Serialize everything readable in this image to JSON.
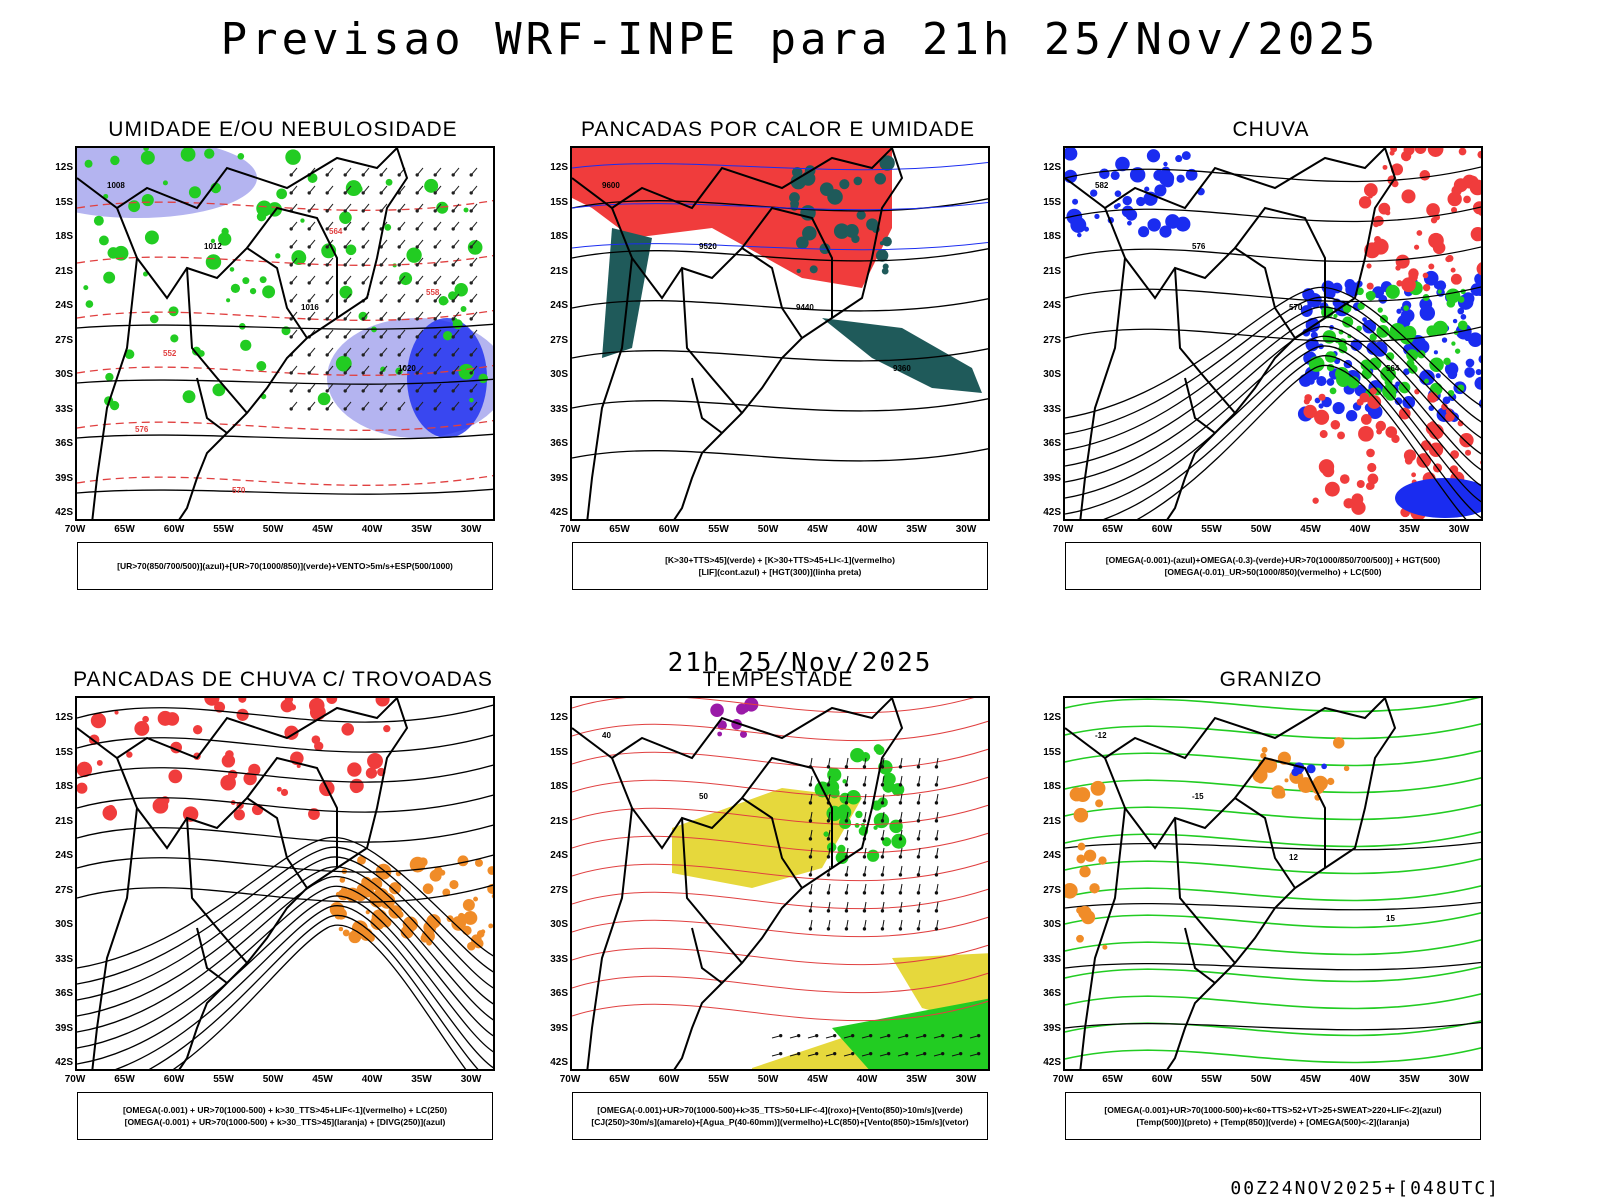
{
  "main_title": "Previsao WRF-INPE  para 21h 25/Nov/2025",
  "mid_title": "21h 25/Nov/2025",
  "footer": "00Z24NOV2025+[048UTC]",
  "lat_labels": [
    "12S",
    "15S",
    "18S",
    "21S",
    "24S",
    "27S",
    "30S",
    "33S",
    "36S",
    "39S",
    "42S"
  ],
  "lon_labels": [
    "70W",
    "65W",
    "60W",
    "55W",
    "50W",
    "45W",
    "40W",
    "35W",
    "30W"
  ],
  "colors": {
    "red": "#f03c3c",
    "green": "#22cc22",
    "blue": "#1a2cf0",
    "lavender": "#b4b4f0",
    "teal": "#1f5a5a",
    "orange": "#f08c28",
    "yellow": "#e6d83c",
    "purple": "#9a1aa8"
  },
  "panels": [
    {
      "title": "UMIDADE E/OU NEBULOSIDADE",
      "legend": [
        "[UR>70(850/700/500)](azul)+[UR>70(1000/850)](verde)+VENTO>5m/s+ESP(500/1000)"
      ],
      "contour_labels": [
        "1008",
        "1012",
        "1016",
        "1020",
        "576",
        "570",
        "564",
        "558",
        "552"
      ]
    },
    {
      "title": "PANCADAS POR CALOR E UMIDADE",
      "legend": [
        "[K>30+TTS>45](verde) + [K>30+TTS>45+LI<-1](vermelho)",
        "[LIF](cont.azul) + [HGT(300)](linha preta)"
      ],
      "contour_labels": [
        "9600",
        "9520",
        "9440",
        "9360"
      ]
    },
    {
      "title": "CHUVA",
      "legend": [
        "[OMEGA(-0.001)-(azul)+OMEGA(-0.3)-(verde)+UR>70(1000/850/700/500)] + HGT(500)",
        "[OMEGA(-0.01)_UR>50(1000/850)(vermelho) + LC(500)"
      ],
      "contour_labels": [
        "582",
        "576",
        "570",
        "564"
      ]
    },
    {
      "title": "PANCADAS DE CHUVA C/ TROVOADAS",
      "legend": [
        "[OMEGA(-0.001) + UR>70(1000-500) + k>30_TTS>45+LIF<-1](vermelho) + LC(250)",
        "[OMEGA(-0.001) + UR>70(1000-500) + k>30_TTS>45](laranja) + [DIVG(250)](azul)"
      ],
      "contour_labels": []
    },
    {
      "title": "TEMPESTADE",
      "legend": [
        "[OMEGA(-0.001)+UR>70(1000-500)+k>35_TTS>50+LIF<-4](roxo)+[Vento(850)>10m/s](verde)",
        "[CJ(250)>30m/s](amarelo)+[Agua_P(40-60mm)](vermelho)+LC(850)+[Vento(850)>15m/s](vetor)"
      ],
      "contour_labels": [
        "40",
        "50"
      ]
    },
    {
      "title": "GRANIZO",
      "legend": [
        "[OMEGA(-0.001)+UR>70(1000-500)+k<60+TTS>52+VT>25+SWEAT>220+LIF<-2](azul)",
        "[Temp(500)](preto) + [Temp(850)](verde) + [OMEGA(500)<-2](laranja)"
      ],
      "contour_labels": [
        "-12",
        "-15",
        "12",
        "15"
      ]
    }
  ]
}
